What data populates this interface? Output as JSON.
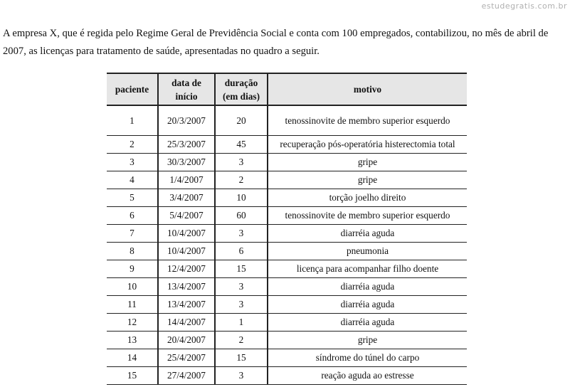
{
  "watermark": "estudegratis.com.br",
  "intro": [
    "A empresa X, que é regida pelo Regime Geral de Previdência Social e conta com 100 empregados, contabilizou, no mês de abril de",
    "2007, as licenças para tratamento de saúde, apresentadas no quadro a seguir."
  ],
  "table": {
    "headers": [
      [
        "paciente",
        ""
      ],
      [
        "data de",
        "início"
      ],
      [
        "duração",
        "(em dias)"
      ],
      [
        "motivo",
        ""
      ]
    ],
    "rows": [
      [
        "1",
        "20/3/2007",
        "20",
        "tenossinovite de membro superior esquerdo"
      ],
      [
        "2",
        "25/3/2007",
        "45",
        "recuperação pós-operatória histerectomia total"
      ],
      [
        "3",
        "30/3/2007",
        "3",
        "gripe"
      ],
      [
        "4",
        "1/4/2007",
        "2",
        "gripe"
      ],
      [
        "5",
        "3/4/2007",
        "10",
        "torção joelho direito"
      ],
      [
        "6",
        "5/4/2007",
        "60",
        "tenossinovite de membro superior esquerdo"
      ],
      [
        "7",
        "10/4/2007",
        "3",
        "diarréia aguda"
      ],
      [
        "8",
        "10/4/2007",
        "6",
        "pneumonia"
      ],
      [
        "9",
        "12/4/2007",
        "15",
        "licença para acompanhar filho doente"
      ],
      [
        "10",
        "13/4/2007",
        "3",
        "diarréia aguda"
      ],
      [
        "11",
        "13/4/2007",
        "3",
        "diarréia aguda"
      ],
      [
        "12",
        "14/4/2007",
        "1",
        "diarréia aguda"
      ],
      [
        "13",
        "20/4/2007",
        "2",
        "gripe"
      ],
      [
        "14",
        "25/4/2007",
        "15",
        "síndrome do túnel do carpo"
      ],
      [
        "15",
        "27/4/2007",
        "3",
        "reação aguda ao estresse"
      ]
    ]
  }
}
